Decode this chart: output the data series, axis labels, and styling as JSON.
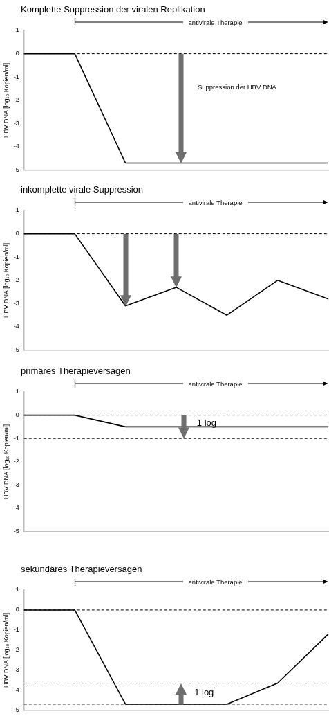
{
  "chart_data": [
    {
      "type": "line",
      "title": "Komplette Suppression der viralen Replikation",
      "ylabel": "HBV DNA [log₁₀ Kopien/ml]",
      "categories": [
        null,
        null,
        null,
        null,
        null,
        null,
        null
      ],
      "values": [
        0,
        0,
        -4.7,
        -4.7,
        -4.7,
        -4.7,
        -4.7
      ],
      "color": "#000000",
      "ylim": [
        -5,
        1
      ],
      "yticks": [
        -5,
        -4,
        -3,
        -2,
        -1,
        0,
        1
      ],
      "tick_labels": "y",
      "grid": false,
      "ref_lines": [
        {
          "axis": "y",
          "value": 0,
          "color": "#000000",
          "line_style": "dashed"
        }
      ],
      "annotations": [
        "antivirale Therapie",
        "Suppression der HBV DNA"
      ]
    },
    {
      "type": "line",
      "title": "inkomplette virale Suppression",
      "ylabel": "HBV DNA [log₁₀ Kopien/ml]",
      "categories": [
        null,
        null,
        null,
        null,
        null,
        null,
        null
      ],
      "values": [
        0,
        0,
        -3.1,
        -2.3,
        -3.5,
        -2.0,
        -2.8
      ],
      "color": "#000000",
      "ylim": [
        -5,
        1
      ],
      "yticks": [
        -5,
        -4,
        -3,
        -2,
        -1,
        0,
        1
      ],
      "tick_labels": "y",
      "grid": false,
      "ref_lines": [
        {
          "axis": "y",
          "value": 0,
          "color": "#000000",
          "line_style": "dashed"
        }
      ],
      "annotations": [
        "antivirale Therapie"
      ]
    },
    {
      "type": "line",
      "title": "primäres Therapieversagen",
      "ylabel": "HBV DNA [log₁₀ Kopien/ml]",
      "categories": [
        null,
        null,
        null,
        null,
        null,
        null,
        null
      ],
      "values": [
        0,
        0,
        -0.5,
        -0.5,
        -0.5,
        -0.5,
        -0.5
      ],
      "color": "#000000",
      "ylim": [
        -5,
        1
      ],
      "yticks": [
        -5,
        -4,
        -3,
        -2,
        -1,
        0,
        1
      ],
      "tick_labels": "y",
      "grid": false,
      "ref_lines": [
        {
          "axis": "y",
          "value": 0,
          "color": "#000000",
          "line_style": "dashed"
        },
        {
          "axis": "y",
          "value": -1,
          "color": "#000000",
          "line_style": "dashed"
        }
      ],
      "annotations": [
        "antivirale Therapie",
        "1 log"
      ]
    },
    {
      "type": "line",
      "title": "sekundäres Therapieversagen",
      "ylabel": "HBV DNA [log₁₀ Kopien/ml]",
      "categories": [
        null,
        null,
        null,
        null,
        null,
        null,
        null
      ],
      "values": [
        0,
        0,
        -4.7,
        -4.7,
        -4.7,
        -3.65,
        -1.2
      ],
      "color": "#000000",
      "ylim": [
        -5,
        1
      ],
      "yticks": [
        -5,
        -4,
        -3,
        -2,
        -1,
        0,
        1
      ],
      "tick_labels": "y",
      "grid": false,
      "ref_lines": [
        {
          "axis": "y",
          "value": 0,
          "color": "#000000",
          "line_style": "dashed"
        },
        {
          "axis": "y",
          "value": -3.65,
          "color": "#000000",
          "line_style": "dashed"
        },
        {
          "axis": "y",
          "value": -4.7,
          "color": "#000000",
          "line_style": "dashed"
        }
      ],
      "annotations": [
        "antivirale Therapie",
        "1 log"
      ]
    }
  ]
}
